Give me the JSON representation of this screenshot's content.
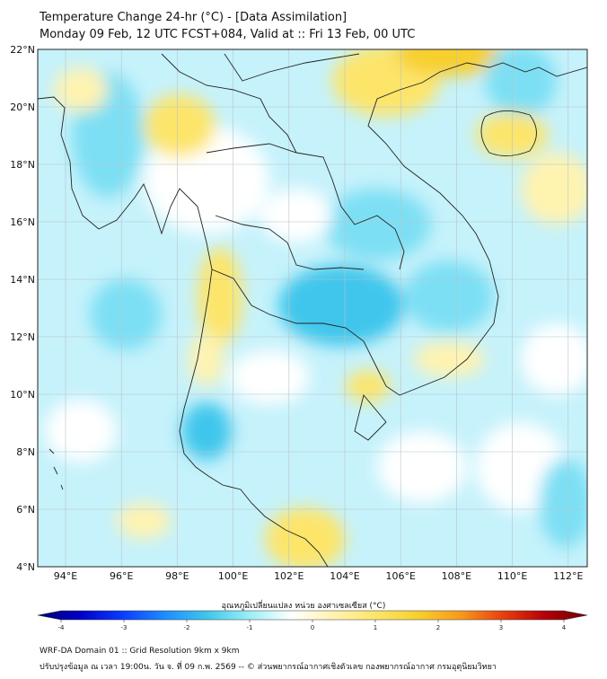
{
  "title": {
    "line1": "Temperature Change 24-hr (°C) - [Data Assimilation]",
    "line2": "Monday 09 Feb, 12 UTC FCST+084, Valid at :: Fri 13 Feb, 00 UTC"
  },
  "map": {
    "lat_labels": [
      "22°N",
      "20°N",
      "18°N",
      "16°N",
      "14°N",
      "12°N",
      "10°N",
      "8°N",
      "6°N",
      "4°N"
    ],
    "lon_labels": [
      "94°E",
      "96°E",
      "98°E",
      "100°E",
      "102°E",
      "104°E",
      "106°E",
      "108°E",
      "110°E",
      "112°E"
    ],
    "field_colors": {
      "neutral": "#ffffff",
      "cool_light": "#b8f0fb",
      "cool": "#7ddff4",
      "cool_strong": "#3fc6ec",
      "warm_light": "#fff3b0",
      "warm": "#fde56b",
      "warm_strong": "#f7cf2f"
    }
  },
  "colorbar": {
    "title": "อุณหภูมิเปลี่ยนแปลง หน่วย องศาเซลเซียส (°C)",
    "tick_labels": [
      "-4",
      "-3",
      "-2",
      "-1",
      "0",
      "1",
      "2",
      "3",
      "4"
    ],
    "range": [
      -4,
      4
    ],
    "colors": [
      "#000070",
      "#0000c8",
      "#0a3cff",
      "#1e8cff",
      "#3fc6ec",
      "#9aeef7",
      "#ffffff",
      "#fff3b0",
      "#fde56b",
      "#f7cf2f",
      "#f79a1c",
      "#e8400e",
      "#b4000a",
      "#6e0000"
    ]
  },
  "footer": {
    "line1": "WRF-DA Domain 01 :: Grid Resolution 9km x 9km",
    "line2": "ปรับปรุงข้อมูล ณ เวลา 19:00น. วัน จ. ที่ 09 ก.พ. 2569 -- © ส่วนพยากรณ์อากาศเชิงตัวเลข กองพยากรณ์อากาศ กรมอุตุนิยมวิทยา"
  }
}
